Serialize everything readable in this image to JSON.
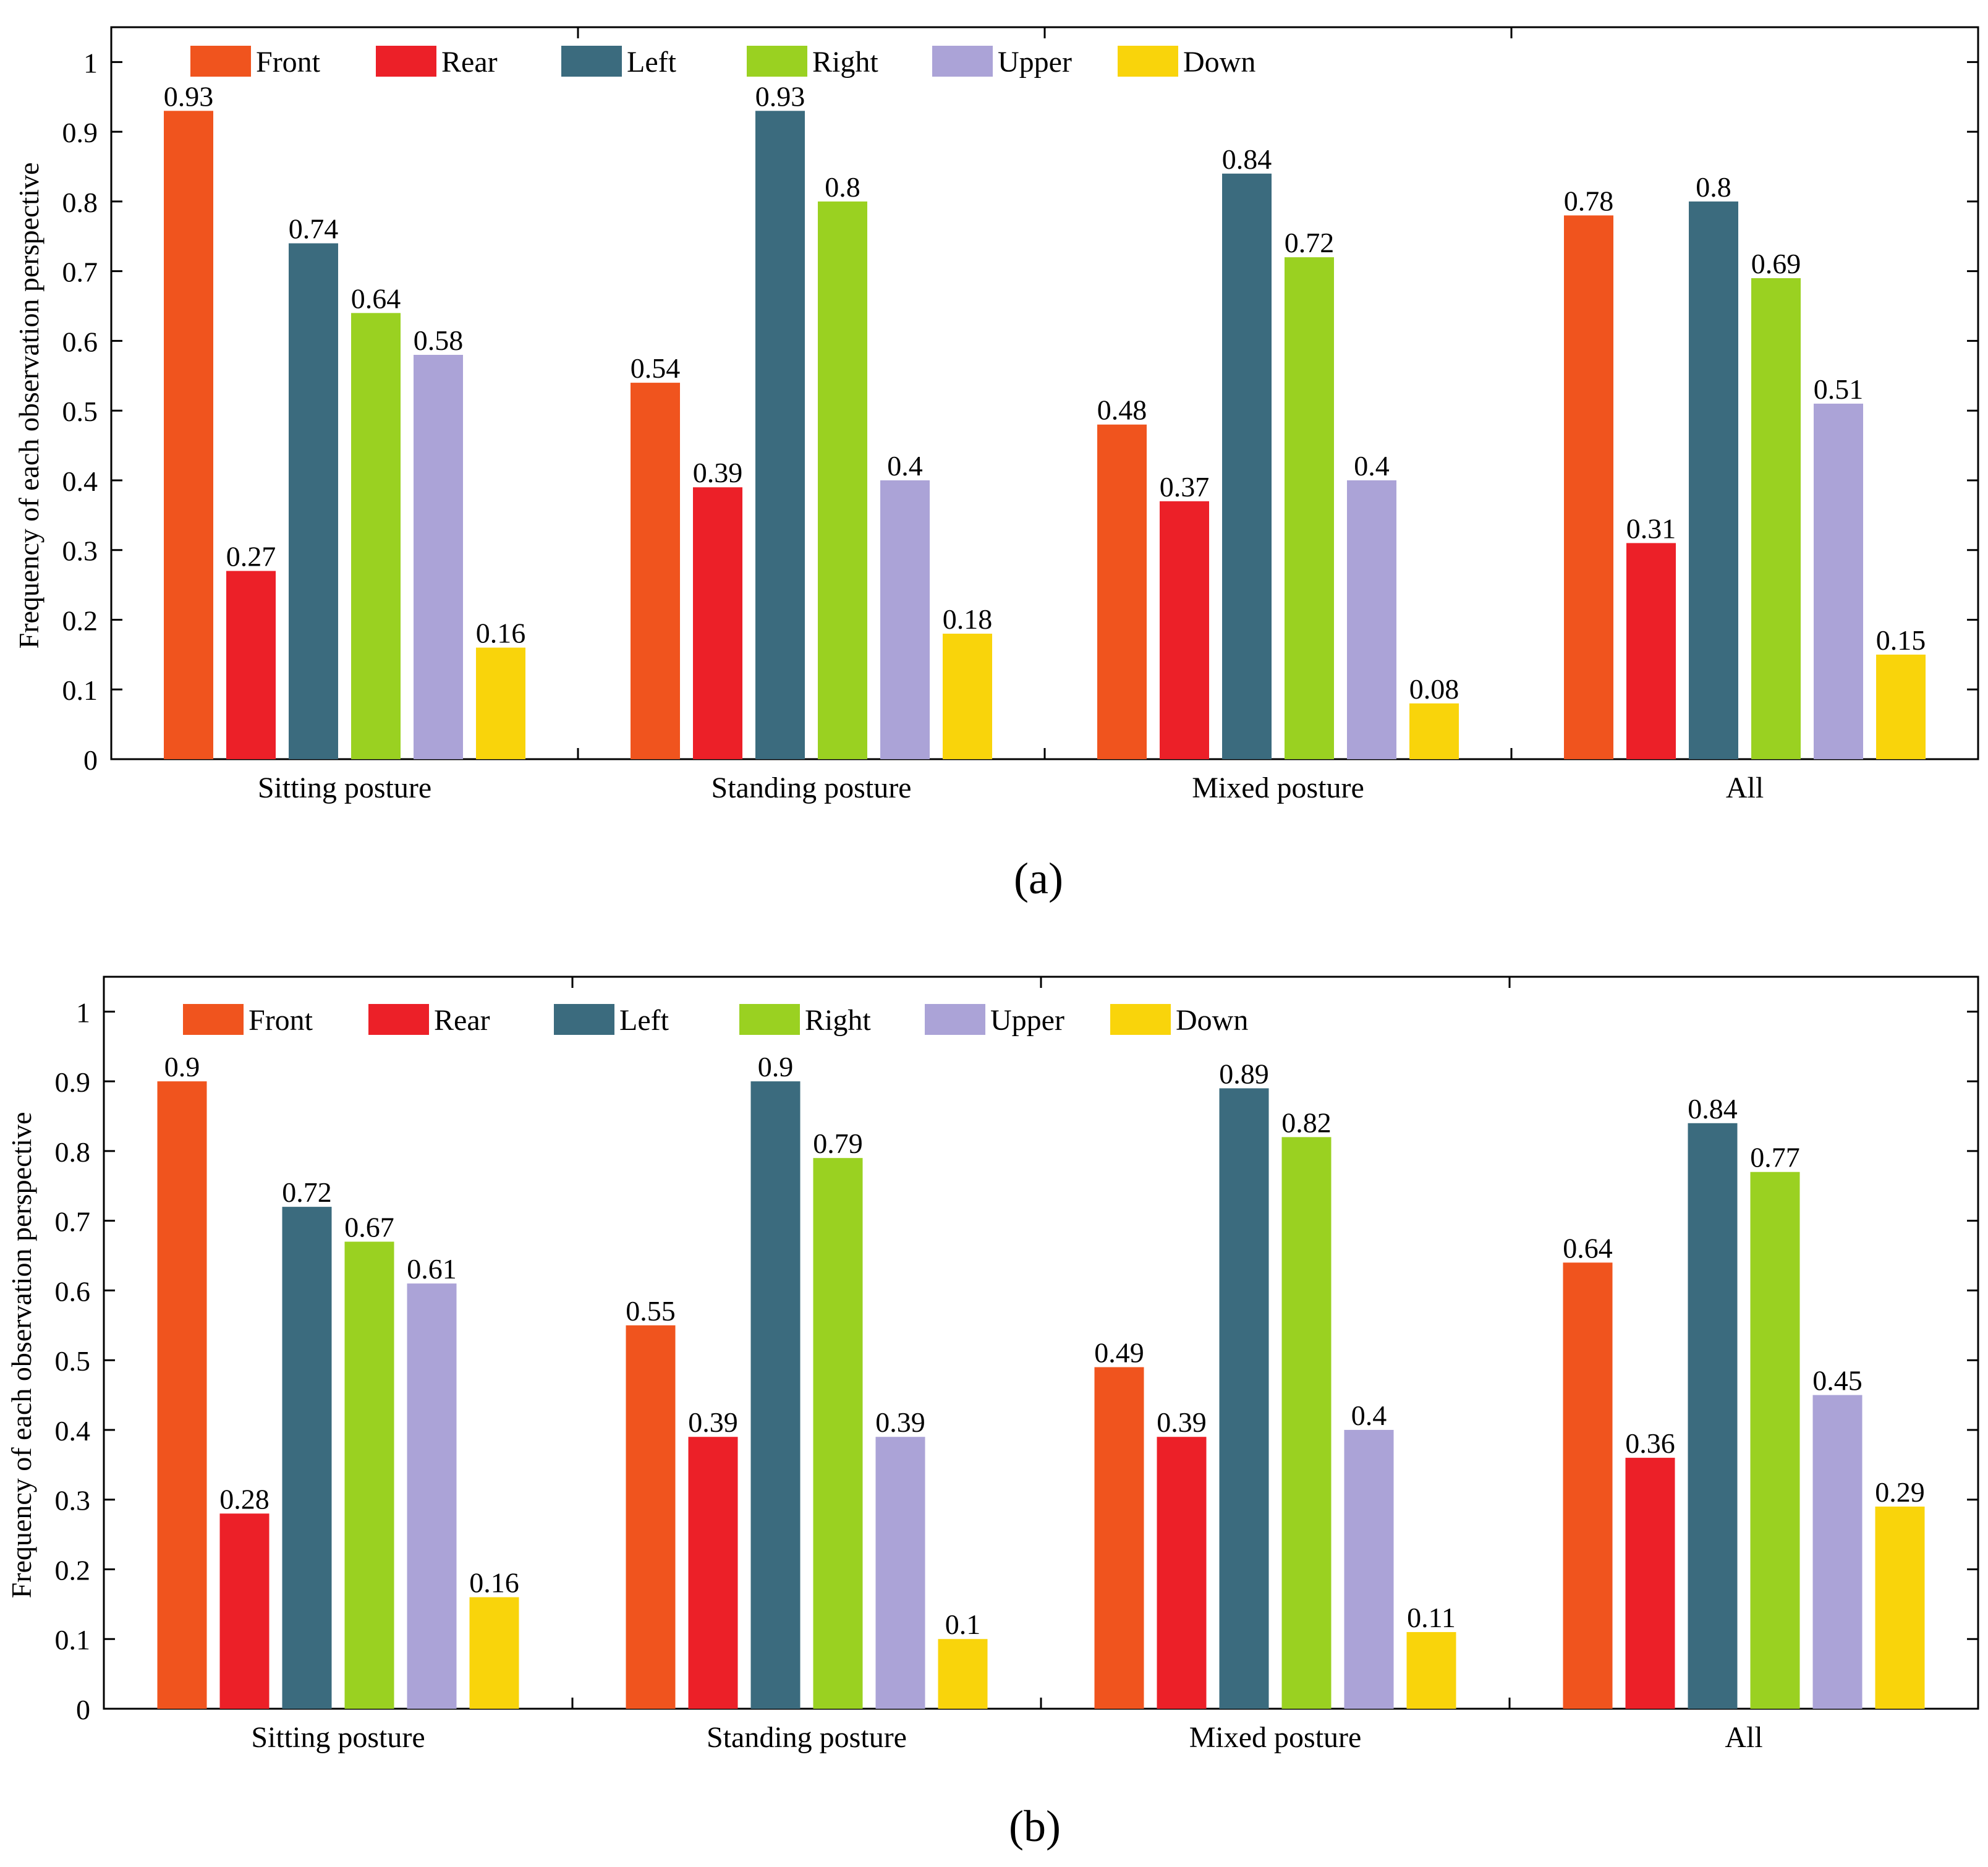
{
  "chart_data": [
    {
      "type": "bar",
      "panel_label": "(a)",
      "categories": [
        "Sitting posture",
        "Standing posture",
        "Mixed posture",
        "All"
      ],
      "ylabel": "Frequency of each observation perspective",
      "xlabel": "",
      "ylim": [
        0,
        1.05
      ],
      "yticks": [
        "0",
        "0.1",
        "0.2",
        "0.3",
        "0.4",
        "0.5",
        "0.6",
        "0.7",
        "0.8",
        "0.9",
        "1"
      ],
      "legend_position": "top",
      "grid": false,
      "series": [
        {
          "name": "Front",
          "color": "#F0541E",
          "values": [
            0.93,
            0.54,
            0.48,
            0.78
          ],
          "labels": [
            "0.93",
            "0.54",
            "0.48",
            "0.78"
          ]
        },
        {
          "name": "Rear",
          "color": "#EC2028",
          "values": [
            0.27,
            0.39,
            0.37,
            0.31
          ],
          "labels": [
            "0.27",
            "0.39",
            "0.37",
            "0.31"
          ]
        },
        {
          "name": "Left",
          "color": "#3B6B7E",
          "values": [
            0.74,
            0.93,
            0.84,
            0.8
          ],
          "labels": [
            "0.74",
            "0.93",
            "0.84",
            "0.8"
          ]
        },
        {
          "name": "Right",
          "color": "#9AD121",
          "values": [
            0.64,
            0.8,
            0.72,
            0.69
          ],
          "labels": [
            "0.64",
            "0.8",
            "0.72",
            "0.69"
          ]
        },
        {
          "name": "Upper",
          "color": "#ABA3D7",
          "values": [
            0.58,
            0.4,
            0.4,
            0.51
          ],
          "labels": [
            "0.58",
            "0.4",
            "0.4",
            "0.51"
          ]
        },
        {
          "name": "Down",
          "color": "#F9D40B",
          "values": [
            0.16,
            0.18,
            0.08,
            0.15
          ],
          "labels": [
            "0.16",
            "0.18",
            "0.08",
            "0.15"
          ]
        }
      ]
    },
    {
      "type": "bar",
      "panel_label": "(b)",
      "categories": [
        "Sitting posture",
        "Standing posture",
        "Mixed posture",
        "All"
      ],
      "ylabel": "Frequency of each observation perspective",
      "xlabel": "",
      "ylim": [
        0,
        1.05
      ],
      "yticks": [
        "0",
        "0.1",
        "0.2",
        "0.3",
        "0.4",
        "0.5",
        "0.6",
        "0.7",
        "0.8",
        "0.9",
        "1"
      ],
      "legend_position": "top",
      "grid": false,
      "series": [
        {
          "name": "Front",
          "color": "#F0541E",
          "values": [
            0.9,
            0.55,
            0.49,
            0.64
          ],
          "labels": [
            "0.9",
            "0.55",
            "0.49",
            "0.64"
          ]
        },
        {
          "name": "Rear",
          "color": "#EC2028",
          "values": [
            0.28,
            0.39,
            0.39,
            0.36
          ],
          "labels": [
            "0.28",
            "0.39",
            "0.39",
            "0.36"
          ]
        },
        {
          "name": "Left",
          "color": "#3B6B7E",
          "values": [
            0.72,
            0.9,
            0.89,
            0.84
          ],
          "labels": [
            "0.72",
            "0.9",
            "0.89",
            "0.84"
          ]
        },
        {
          "name": "Right",
          "color": "#9AD121",
          "values": [
            0.67,
            0.79,
            0.82,
            0.77
          ],
          "labels": [
            "0.67",
            "0.79",
            "0.82",
            "0.77"
          ]
        },
        {
          "name": "Upper",
          "color": "#ABA3D7",
          "values": [
            0.61,
            0.39,
            0.4,
            0.45
          ],
          "labels": [
            "0.61",
            "0.39",
            "0.4",
            "0.45"
          ]
        },
        {
          "name": "Down",
          "color": "#F9D40B",
          "values": [
            0.16,
            0.1,
            0.11,
            0.29
          ],
          "labels": [
            "0.16",
            "0.1",
            "0.11",
            "0.29"
          ]
        }
      ]
    }
  ]
}
